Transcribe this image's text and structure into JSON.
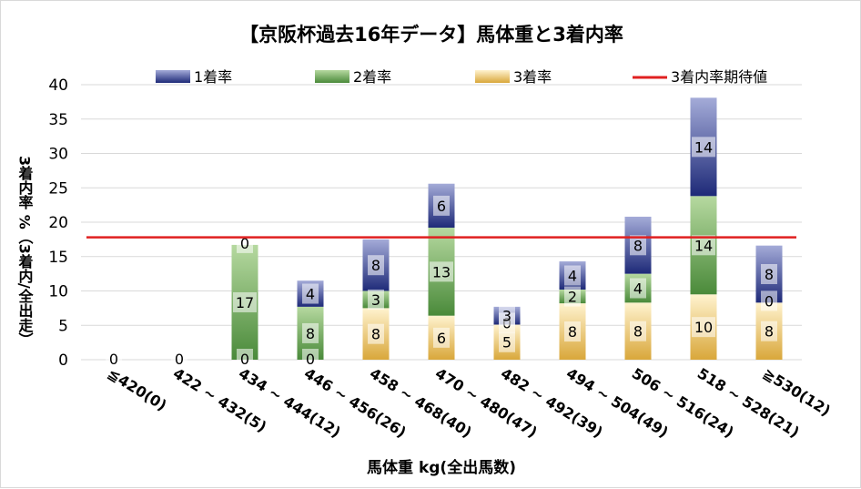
{
  "chart_data": {
    "type": "bar",
    "stacked": true,
    "title": "【京阪杯過去16年データ】馬体重と3着内率",
    "xlabel": "馬体重 kg(全出馬数)",
    "ylabel": "3着内率 %（3着内/全出走）",
    "ylim": [
      0,
      40
    ],
    "yticks": [
      0,
      5,
      10,
      15,
      20,
      25,
      30,
      35,
      40
    ],
    "grid": true,
    "legend_position": "top",
    "categories": [
      "≦420(0)",
      "422 ~ 432(5)",
      "434 ~ 444(12)",
      "446 ~ 456(26)",
      "458 ~ 468(40)",
      "470 ~ 480(47)",
      "482 ~ 492(39)",
      "494 ~ 504(49)",
      "506 ~ 516(24)",
      "518 ~ 528(21)",
      "≧530(12)"
    ],
    "series": [
      {
        "name": "3着率",
        "color": "#e8b84a",
        "labels": [
          "0",
          "0",
          "0",
          "0",
          "8",
          "6",
          "5",
          "8",
          "8",
          "10",
          "8"
        ],
        "values": [
          0,
          0,
          0,
          0,
          7.5,
          6.4,
          5.1,
          8.2,
          8.3,
          9.5,
          8.3
        ]
      },
      {
        "name": "2着率",
        "color": "#6aa84f",
        "labels": [
          "",
          "",
          "17",
          "8",
          "3",
          "13",
          "0",
          "2",
          "4",
          "14",
          "0"
        ],
        "values": [
          0,
          0,
          16.7,
          7.7,
          2.5,
          12.8,
          0,
          2.0,
          4.2,
          14.3,
          0
        ]
      },
      {
        "name": "1着率",
        "color": "#2e3a8c",
        "labels": [
          "",
          "",
          "0",
          "4",
          "8",
          "6",
          "3",
          "4",
          "8",
          "14",
          "8"
        ],
        "values": [
          0,
          0,
          0,
          3.8,
          7.5,
          6.4,
          2.6,
          4.1,
          8.3,
          14.3,
          8.3
        ]
      }
    ],
    "reference_line": {
      "name": "3着内率期待値",
      "value": 17.8,
      "color": "#e02020"
    }
  }
}
